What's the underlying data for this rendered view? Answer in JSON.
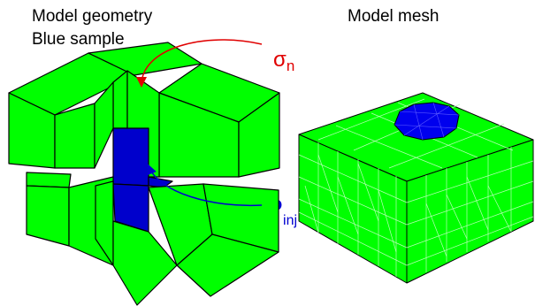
{
  "labels": {
    "geometry_title": "Model geometry",
    "geometry_subtitle": "Blue sample",
    "mesh_title": "Model mesh"
  },
  "symbols": {
    "normal_stress": {
      "main": "σ",
      "sub": "n"
    },
    "injection_pressure": {
      "main": "P",
      "sub": "inj"
    }
  },
  "colors": {
    "solid": "#00ff00",
    "sample": "#0000cc",
    "normal_stress_arrow": "#e00000",
    "injection_arrow": "#0000d0"
  }
}
